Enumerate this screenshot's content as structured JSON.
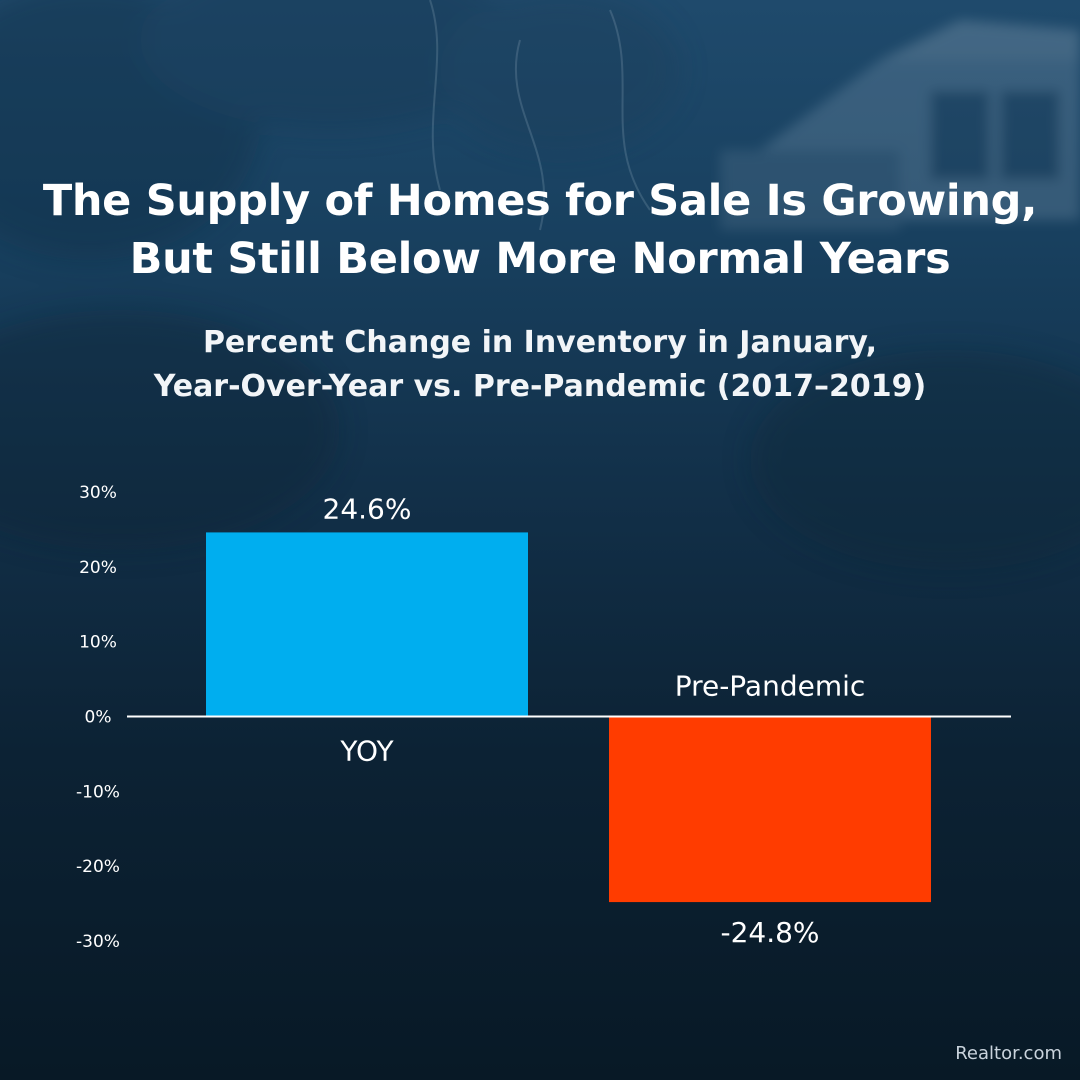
{
  "title": {
    "line1": "The Supply of Homes for Sale Is Growing,",
    "line2": "But Still Below More Normal Years"
  },
  "subtitle": {
    "line1": "Percent Change in Inventory in January,",
    "line2": "Year-Over-Year vs. Pre-Pandemic (2017–2019)"
  },
  "source": "Realtor.com",
  "chart_data": {
    "type": "bar",
    "categories": [
      "YOY",
      "Pre-Pandemic"
    ],
    "values": [
      24.6,
      -24.8
    ],
    "value_labels": [
      "24.6%",
      "-24.8%"
    ],
    "colors": [
      "#00aeef",
      "#ff3c00"
    ],
    "ylim": [
      -30,
      30
    ],
    "yticks": [
      30,
      20,
      10,
      0,
      -10,
      -20,
      -30
    ],
    "ytick_labels": [
      "30%",
      "20%",
      "10%",
      "0%",
      "-10%",
      "-20%",
      "-30%"
    ],
    "xlabel": "",
    "ylabel": "",
    "grid": false,
    "legend": "none"
  }
}
